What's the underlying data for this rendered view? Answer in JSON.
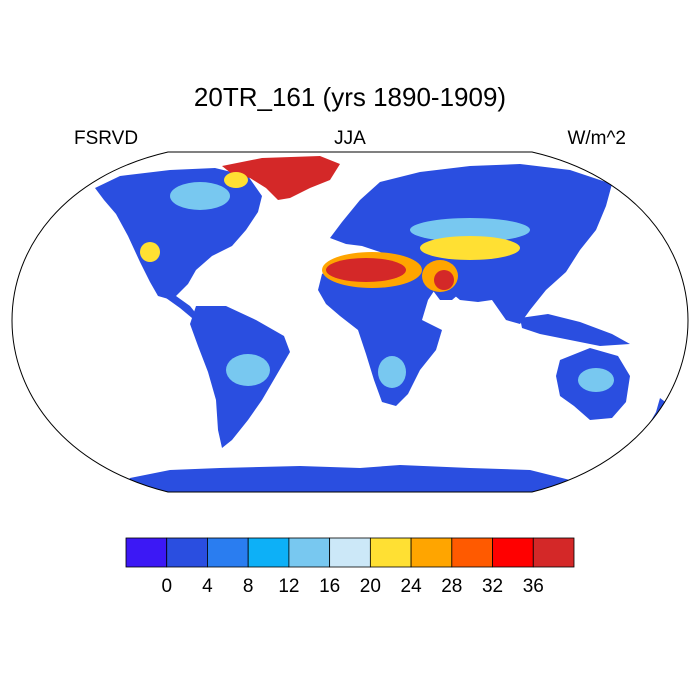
{
  "title": "20TR_161 (yrs 1890-1909)",
  "left_label": "FSRVD",
  "center_label": "JJA",
  "right_label": "W/m^2",
  "colorbar": {
    "colors": [
      "#3c18f5",
      "#2a4ee0",
      "#2a7df0",
      "#0db0f7",
      "#78c8f0",
      "#cce8f8",
      "#ffe033",
      "#ffa500",
      "#ff5a00",
      "#ff0000",
      "#d42828"
    ],
    "tick_labels": [
      "0",
      "4",
      "8",
      "12",
      "16",
      "20",
      "24",
      "28",
      "32",
      "36"
    ]
  },
  "map_colors": {
    "land_base": "#2a4ee0",
    "ocean": "#ffffff",
    "greenland": "#d42828"
  }
}
